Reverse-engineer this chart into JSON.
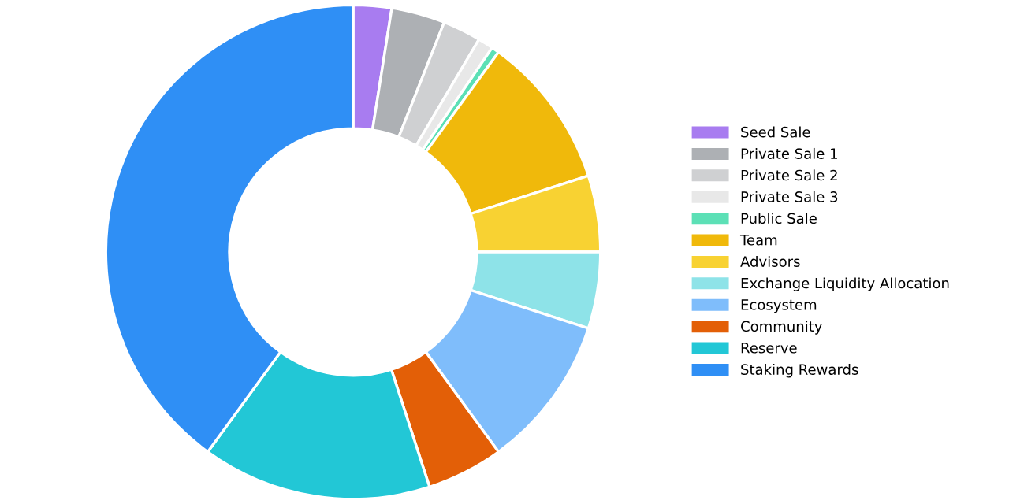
{
  "chart_data": {
    "type": "donut",
    "categories": [
      "Seed Sale",
      "Private Sale 1",
      "Private Sale 2",
      "Private Sale 3",
      "Public Sale",
      "Team",
      "Advisors",
      "Exchange Liquidity Allocation",
      "Ecosystem",
      "Community",
      "Reserve",
      "Staking Rewards"
    ],
    "values": [
      2.5,
      3.5,
      2.5,
      1,
      0.5,
      10,
      5,
      5,
      10,
      5,
      15,
      40
    ],
    "colors": [
      "#a87cf0",
      "#adb0b4",
      "#cfd0d2",
      "#e8e8e8",
      "#5ce0b6",
      "#f0b90b",
      "#f8d232",
      "#8ee3e8",
      "#7fbdfb",
      "#e35f07",
      "#22c7d6",
      "#2f8ff5"
    ],
    "legend": "right"
  }
}
